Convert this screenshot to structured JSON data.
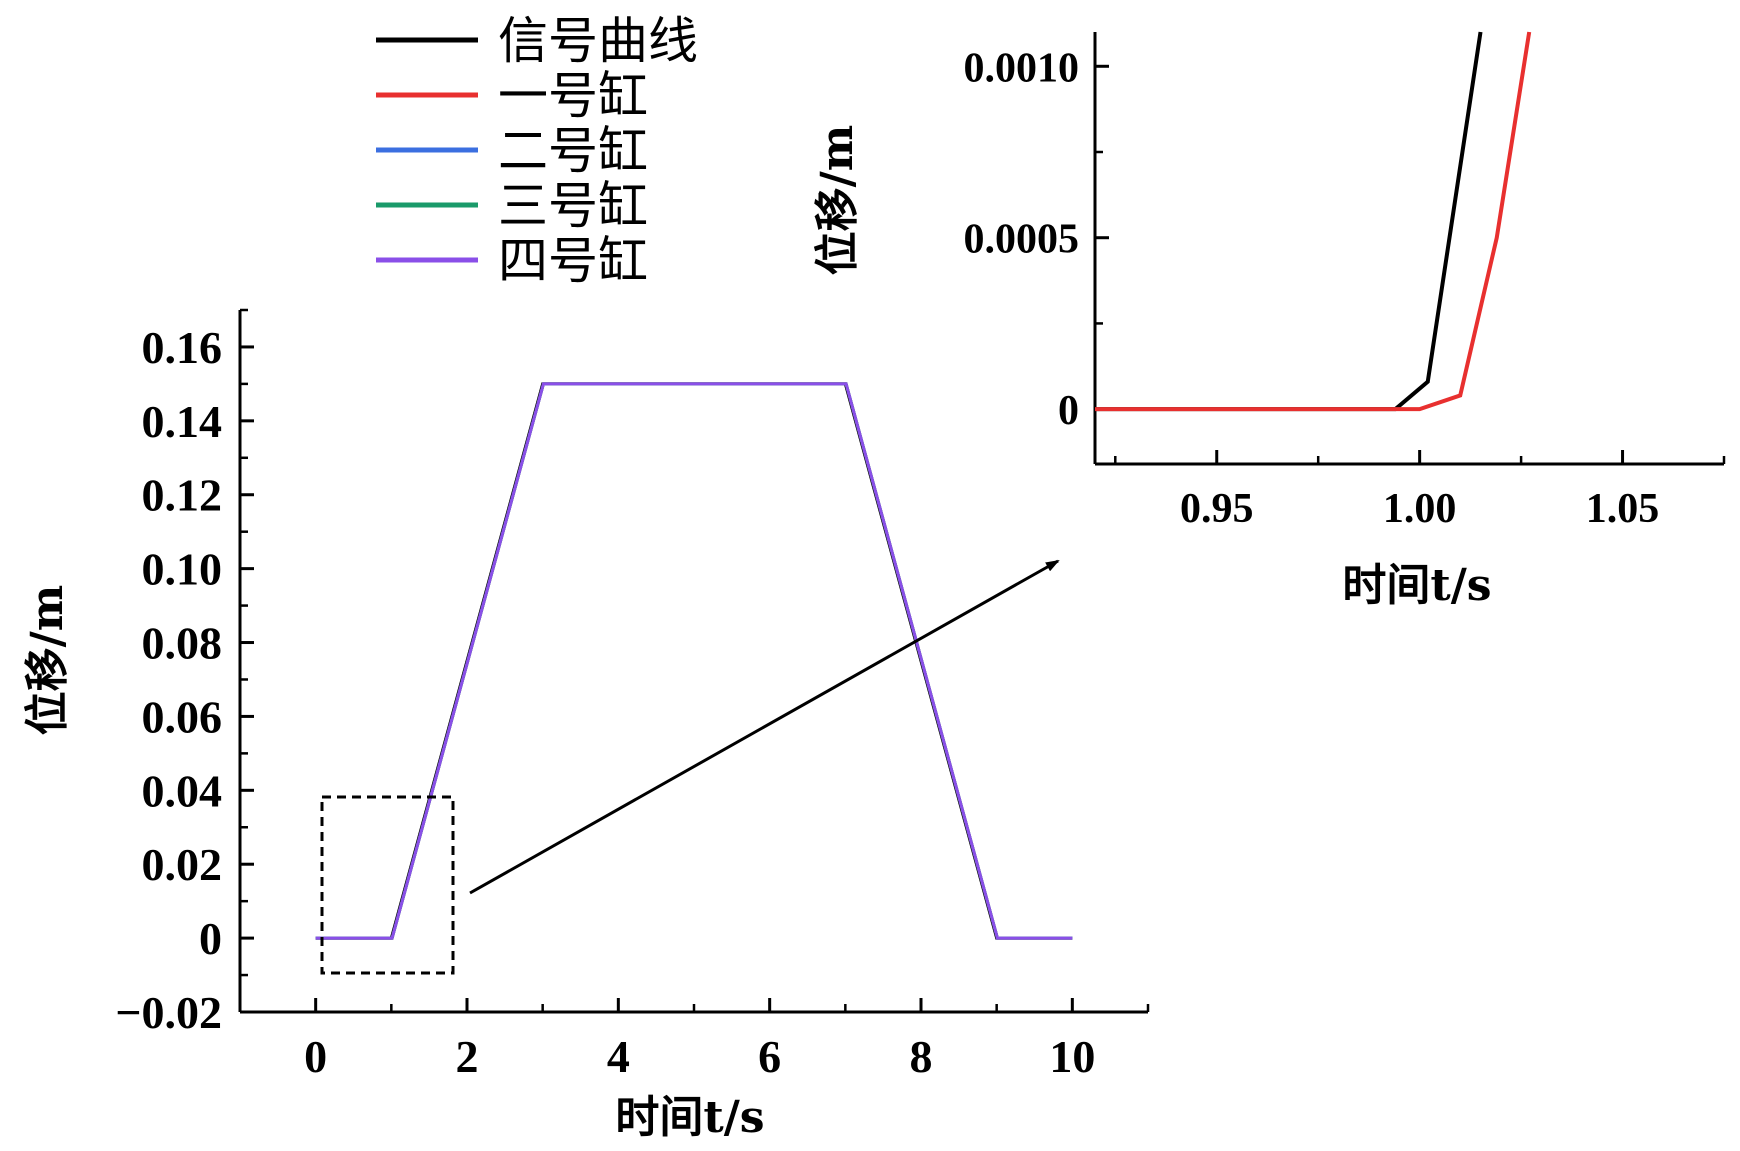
{
  "chart_data": [
    {
      "type": "line",
      "xlabel": "时间t/s",
      "ylabel": "位移/m",
      "xlim": [
        -1,
        11
      ],
      "ylim": [
        -0.02,
        0.17
      ],
      "xticks": [
        "0",
        "2",
        "4",
        "6",
        "8",
        "10"
      ],
      "yticks": [
        "−0.02",
        "0",
        "0.02",
        "0.04",
        "0.06",
        "0.08",
        "0.10",
        "0.12",
        "0.14",
        "0.16"
      ],
      "grid": false,
      "legend": "top-left",
      "series": [
        {
          "name": "信号曲线",
          "color": "#000000",
          "x": [
            0,
            1,
            3,
            7,
            9,
            10
          ],
          "y": [
            0,
            0,
            0.15,
            0.15,
            0,
            0
          ]
        },
        {
          "name": "一号缸",
          "color": "#e8302f",
          "x": [
            0,
            1.01,
            3.01,
            7.01,
            9.01,
            10
          ],
          "y": [
            0,
            0,
            0.15,
            0.15,
            0,
            0
          ]
        },
        {
          "name": "二号缸",
          "color": "#3b6fe0",
          "x": [
            0,
            1.01,
            3.01,
            7.01,
            9.01,
            10
          ],
          "y": [
            0,
            0,
            0.15,
            0.15,
            0,
            0
          ]
        },
        {
          "name": "三号缸",
          "color": "#1a9a6a",
          "x": [
            0,
            1.01,
            3.01,
            7.01,
            9.01,
            10
          ],
          "y": [
            0,
            0,
            0.15,
            0.15,
            0,
            0
          ]
        },
        {
          "name": "四号缸",
          "color": "#8a4fe8",
          "x": [
            0,
            1.01,
            3.01,
            7.01,
            9.01,
            10
          ],
          "y": [
            0,
            0,
            0.15,
            0.15,
            0,
            0
          ]
        }
      ]
    },
    {
      "type": "line",
      "xlabel": "时间t/s",
      "ylabel": "位移/m",
      "xlim": [
        0.92,
        1.075
      ],
      "ylim": [
        -0.00016,
        0.0011
      ],
      "xticks": [
        "0.95",
        "1.00",
        "1.05"
      ],
      "yticks": [
        "0",
        "0.0005",
        "0.0010"
      ],
      "grid": false,
      "series": [
        {
          "name": "信号曲线",
          "color": "#000000",
          "x": [
            0.92,
            0.994,
            1.002,
            1.015
          ],
          "y": [
            0,
            0,
            8e-05,
            0.0011
          ]
        },
        {
          "name": "一号缸",
          "color": "#e8302f",
          "x": [
            0.92,
            1.0,
            1.01,
            1.019,
            1.027
          ],
          "y": [
            0,
            0,
            4e-05,
            0.0005,
            0.0011
          ]
        }
      ]
    }
  ]
}
